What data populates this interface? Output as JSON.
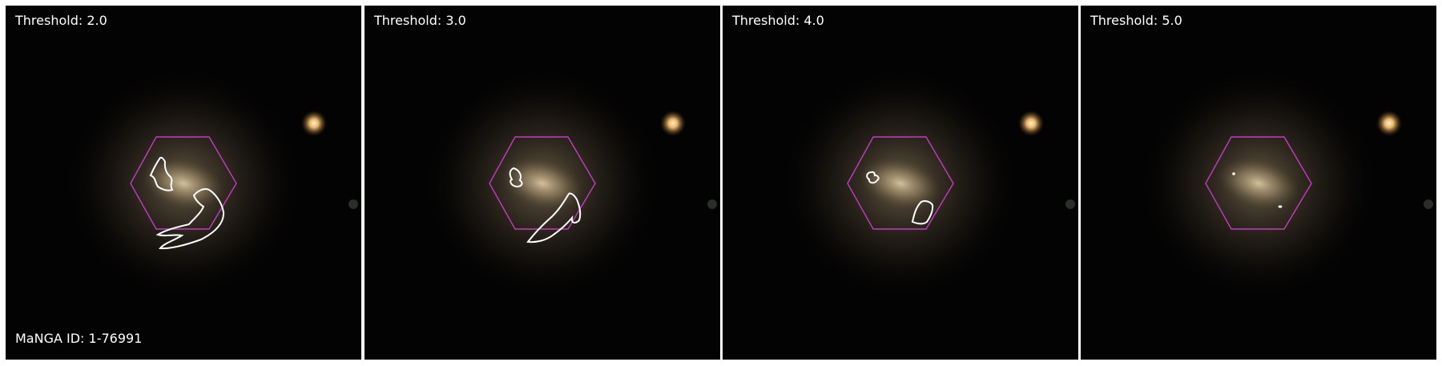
{
  "panels": [
    {
      "label": "Threshold: 2.0"
    },
    {
      "label": "Threshold: 3.0"
    },
    {
      "label": "Threshold: 4.0"
    },
    {
      "label": "Threshold: 5.0"
    }
  ],
  "manga_id_label": "MaNGA ID: 1-76991",
  "colors": {
    "background": "#030303",
    "ifu_hexagon": "#c23cc2",
    "contour": "#ffffff",
    "galaxy_core": "#b8a582",
    "companion_star": "#e8b46a"
  },
  "icons": {
    "ifu_footprint": "hexagon-outline",
    "contour": "contour-line"
  }
}
